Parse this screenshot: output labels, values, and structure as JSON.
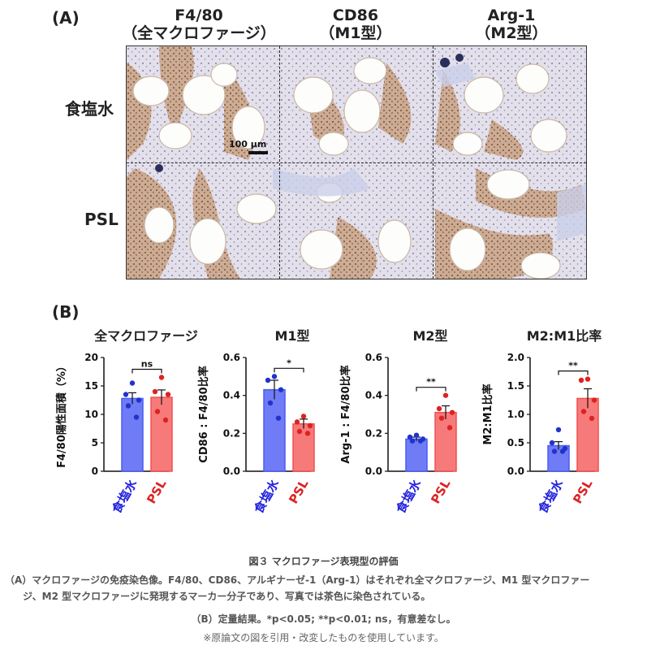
{
  "panel_a_label": "(A)",
  "panel_b_label": "(B)",
  "columns": [
    {
      "line1": "F4/80",
      "line2": "（全マクロファージ）"
    },
    {
      "line1": "CD86",
      "line2": "（M1型）"
    },
    {
      "line1": "Arg-1",
      "line2": "（M2型）"
    }
  ],
  "rows": [
    "食塩水",
    "PSL"
  ],
  "scale_bar": "100 μm",
  "charts": [
    {
      "title": "全マクロファージ",
      "ylabel": "F4/80陽性面積（%）",
      "significance": "ns",
      "stroke": "#4455dd"
    },
    {
      "title": "M1型",
      "ylabel": "CD86 : F4/80比率",
      "significance": "*"
    },
    {
      "title": "M2型",
      "ylabel": "Arg-1 : F4/80比率",
      "significance": "**"
    },
    {
      "title": "M2:M1比率",
      "ylabel": "M2:M1比率",
      "significance": "**"
    }
  ],
  "chart_data": [
    {
      "type": "bar",
      "title": "全マクロファージ",
      "ylabel": "F4/80陽性面積（%）",
      "categories": [
        "食塩水",
        "PSL"
      ],
      "values": [
        12.8,
        13.0
      ],
      "errors": [
        1.0,
        1.3
      ],
      "points": [
        [
          15.5,
          13.5,
          12.5,
          11.5,
          9.5
        ],
        [
          16.5,
          14.0,
          13.5,
          10.5,
          9.0
        ]
      ],
      "ylim": [
        0,
        20
      ],
      "yticks": [
        0,
        5,
        10,
        15,
        20
      ],
      "significance": "ns",
      "colors": [
        "#4a5cf0",
        "#f05050"
      ]
    },
    {
      "type": "bar",
      "title": "M1型",
      "ylabel": "CD86 : F4/80比率",
      "categories": [
        "食塩水",
        "PSL"
      ],
      "values": [
        0.43,
        0.25
      ],
      "errors": [
        0.05,
        0.025
      ],
      "points": [
        [
          0.5,
          0.48,
          0.43,
          0.36,
          0.28
        ],
        [
          0.29,
          0.26,
          0.24,
          0.21,
          0.2
        ]
      ],
      "ylim": [
        0,
        0.6
      ],
      "yticks": [
        0.0,
        0.2,
        0.4,
        0.6
      ],
      "significance": "*",
      "colors": [
        "#4a5cf0",
        "#f05050"
      ]
    },
    {
      "type": "bar",
      "title": "M2型",
      "ylabel": "Arg-1 : F4/80比率",
      "categories": [
        "食塩水",
        "PSL"
      ],
      "values": [
        0.17,
        0.31
      ],
      "errors": [
        0.01,
        0.035
      ],
      "points": [
        [
          0.19,
          0.18,
          0.17,
          0.16,
          0.16
        ],
        [
          0.4,
          0.33,
          0.31,
          0.28,
          0.23
        ]
      ],
      "ylim": [
        0,
        0.6
      ],
      "yticks": [
        0.0,
        0.2,
        0.4,
        0.6
      ],
      "significance": "**",
      "colors": [
        "#4a5cf0",
        "#f05050"
      ]
    },
    {
      "type": "bar",
      "title": "M2:M1比率",
      "ylabel": "M2:M1比率",
      "categories": [
        "食塩水",
        "PSL"
      ],
      "values": [
        0.45,
        1.28
      ],
      "errors": [
        0.07,
        0.17
      ],
      "points": [
        [
          0.73,
          0.5,
          0.4,
          0.35,
          0.35
        ],
        [
          1.62,
          1.6,
          1.25,
          1.05,
          0.93
        ]
      ],
      "ylim": [
        0,
        2.0
      ],
      "yticks": [
        0.0,
        0.5,
        1.0,
        1.5,
        2.0
      ],
      "significance": "**",
      "colors": [
        "#4a5cf0",
        "#f05050"
      ]
    }
  ],
  "caption": {
    "title": "図３ マクロファージ表現型の評価",
    "a_line1": "（A）マクロファージの免疫染色像。F4/80、CD86、アルギナーゼ-1（Arg-1）はそれぞれ全マクロファージ、M1 型マクロファー",
    "a_line2": "ジ、M2 型マクロファージに発現するマーカー分子であり、写真では茶色に染色されている。",
    "b_line": "（B）定量結果。*p<0.05; **p<0.01; ns，有意差なし。",
    "note": "※原論文の図を引用・改変したものを使用しています。"
  },
  "colors": {
    "saline": "#2222dd",
    "psl": "#dd2222",
    "bar_blue": "#6f7cf6",
    "bar_red": "#f77a7a",
    "stain_brown": "#8a5a2a"
  }
}
